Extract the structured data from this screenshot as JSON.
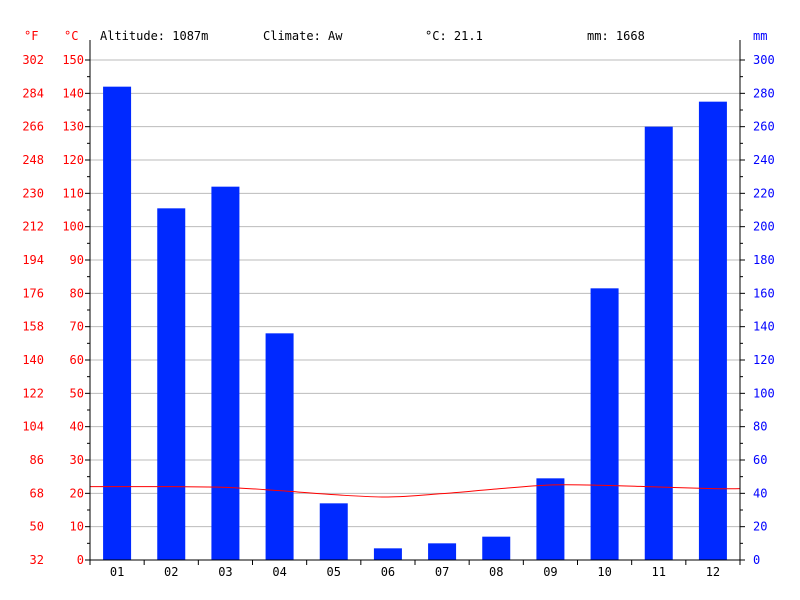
{
  "chart_data": {
    "type": "bar",
    "header": {
      "altitude": "Altitude: 1087m",
      "climate": "Climate: Aw",
      "mean_temp": "°C: 21.1",
      "total_precip": "mm: 1668"
    },
    "axis_units": {
      "fahrenheit": "°F",
      "celsius": "°C",
      "precip": "mm"
    },
    "categories": [
      "01",
      "02",
      "03",
      "04",
      "05",
      "06",
      "07",
      "08",
      "09",
      "10",
      "11",
      "12"
    ],
    "precip_mm": [
      284,
      211,
      224,
      136,
      34,
      7,
      10,
      14,
      49,
      163,
      260,
      275
    ],
    "temp_c": [
      22.0,
      22.0,
      21.8,
      20.8,
      19.6,
      18.9,
      19.9,
      21.3,
      22.5,
      22.4,
      21.9,
      21.4
    ],
    "ylim_temp_c": [
      0,
      150
    ],
    "ylim_precip_mm": [
      0,
      300
    ],
    "ylim_temp_f": [
      32,
      302
    ],
    "temp_c_ticks": [
      0,
      10,
      20,
      30,
      40,
      50,
      60,
      70,
      80,
      90,
      100,
      110,
      120,
      130,
      140,
      150
    ],
    "temp_f_ticks": [
      32,
      50,
      68,
      86,
      104,
      122,
      140,
      158,
      176,
      194,
      212,
      230,
      248,
      266,
      284,
      302
    ],
    "precip_ticks": [
      0,
      20,
      40,
      60,
      80,
      100,
      120,
      140,
      160,
      180,
      200,
      220,
      240,
      260,
      280,
      300
    ],
    "grid": true,
    "colors": {
      "bar": "#0029ff",
      "temp_line": "#ff0000",
      "temp_axis": "#ff0000",
      "precip_axis": "#0000ff",
      "grid": "#bbbbbb"
    }
  }
}
